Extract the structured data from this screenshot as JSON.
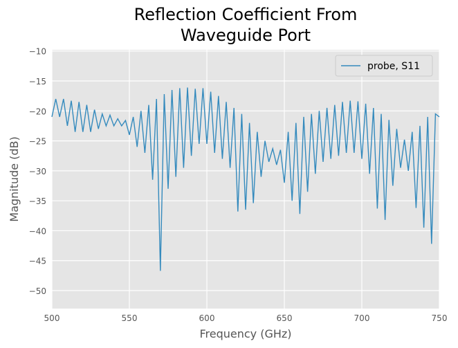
{
  "chart_data": {
    "type": "line",
    "title": "Reflection Coefficient From\nWaveguide Port",
    "xlabel": "Frequency (GHz)",
    "ylabel": "Magnitude (dB)",
    "x": [
      500,
      502.5,
      505,
      507.5,
      510,
      512.5,
      515,
      517.5,
      520,
      522.5,
      525,
      527.5,
      530,
      532.5,
      535,
      537.5,
      540,
      542.5,
      545,
      547.5,
      550,
      552.5,
      555,
      557.5,
      560,
      562.5,
      565,
      567.5,
      570,
      572.5,
      575,
      577.5,
      580,
      582.5,
      585,
      587.5,
      590,
      592.5,
      595,
      597.5,
      600,
      602.5,
      605,
      607.5,
      610,
      612.5,
      615,
      617.5,
      620,
      622.5,
      625,
      627.5,
      630,
      632.5,
      635,
      637.5,
      640,
      642.5,
      645,
      647.5,
      650,
      652.5,
      655,
      657.5,
      660,
      662.5,
      665,
      667.5,
      670,
      672.5,
      675,
      677.5,
      680,
      682.5,
      685,
      687.5,
      690,
      692.5,
      695,
      697.5,
      700,
      702.5,
      705,
      707.5,
      710,
      712.5,
      715,
      717.5,
      720,
      722.5,
      725,
      727.5,
      730,
      732.5,
      735,
      737.5,
      740,
      742.5,
      745,
      747.5,
      750
    ],
    "series": [
      {
        "name": "probe, S11",
        "color": "#348abd",
        "values": [
          -21,
          -18,
          -21,
          -18,
          -22.5,
          -18.3,
          -23.5,
          -18.5,
          -23.5,
          -19,
          -23.5,
          -19.8,
          -23,
          -20.5,
          -22.5,
          -20.7,
          -22.5,
          -21.3,
          -22.5,
          -21.6,
          -24,
          -21,
          -26,
          -20,
          -27,
          -19,
          -31.5,
          -18,
          -46.7,
          -17.2,
          -33,
          -16.5,
          -31,
          -16.2,
          -29.5,
          -16.1,
          -27.5,
          -16.3,
          -25.5,
          -16.2,
          -25.5,
          -16.8,
          -27,
          -17.5,
          -28,
          -18.5,
          -29.5,
          -19.5,
          -36.8,
          -20.5,
          -36.5,
          -22,
          -35.4,
          -23.5,
          -31,
          -25,
          -28.5,
          -26.3,
          -29,
          -26.5,
          -32,
          -23.5,
          -35,
          -22,
          -37.2,
          -21,
          -33.5,
          -20.5,
          -30.5,
          -20,
          -28.5,
          -19.5,
          -28,
          -19,
          -27.5,
          -18.5,
          -27,
          -18.3,
          -27,
          -18.4,
          -28,
          -18.8,
          -30.5,
          -19.5,
          -36.3,
          -20.5,
          -38.2,
          -21.5,
          -32.5,
          -23,
          -29.5,
          -24.8,
          -30,
          -23.5,
          -36.2,
          -22.5,
          -39.5,
          -21,
          -42.2,
          -20.5,
          -21
        ]
      }
    ],
    "xlim": [
      500,
      750
    ],
    "ylim": [
      -53,
      -9.8
    ],
    "xticks": [
      500,
      550,
      600,
      650,
      700,
      750
    ],
    "yticks": [
      {
        "value": -10,
        "label": "−10"
      },
      {
        "value": -15,
        "label": "−15"
      },
      {
        "value": -20,
        "label": "−20"
      },
      {
        "value": -25,
        "label": "−25"
      },
      {
        "value": -30,
        "label": "−30"
      },
      {
        "value": -35,
        "label": "−35"
      },
      {
        "value": -40,
        "label": "−40"
      },
      {
        "value": -45,
        "label": "−45"
      },
      {
        "value": -50,
        "label": "−50"
      }
    ],
    "grid": true,
    "legend": "upper right"
  }
}
